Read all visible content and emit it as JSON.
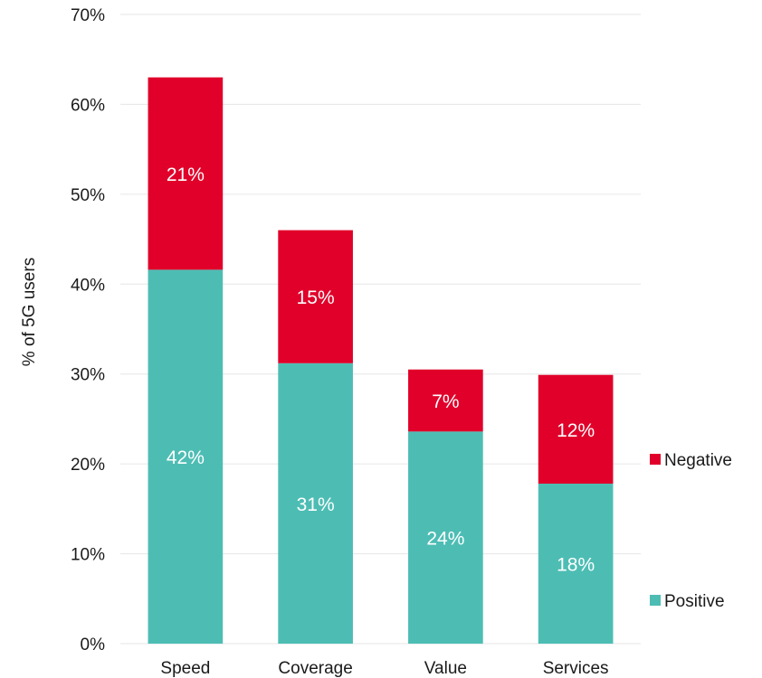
{
  "chart_data": {
    "type": "bar",
    "stacked": true,
    "categories": [
      "Speed",
      "Coverage",
      "Value",
      "Services"
    ],
    "series": [
      {
        "name": "Positive",
        "values": [
          41.6,
          31.2,
          23.6,
          17.8
        ],
        "labels": [
          "42%",
          "31%",
          "24%",
          "18%"
        ],
        "color": "#4dbdb4"
      },
      {
        "name": "Negative",
        "values": [
          21.4,
          14.8,
          6.9,
          12.1
        ],
        "labels": [
          "21%",
          "15%",
          "7%",
          "12%"
        ],
        "color": "#e0002a"
      }
    ],
    "title": "",
    "xlabel": "",
    "ylabel": "% of 5G users",
    "ylim": [
      0,
      70
    ],
    "yticks": [
      "0%",
      "10%",
      "20%",
      "30%",
      "40%",
      "50%",
      "60%",
      "70%"
    ],
    "grid": true,
    "legend_position": "right"
  }
}
